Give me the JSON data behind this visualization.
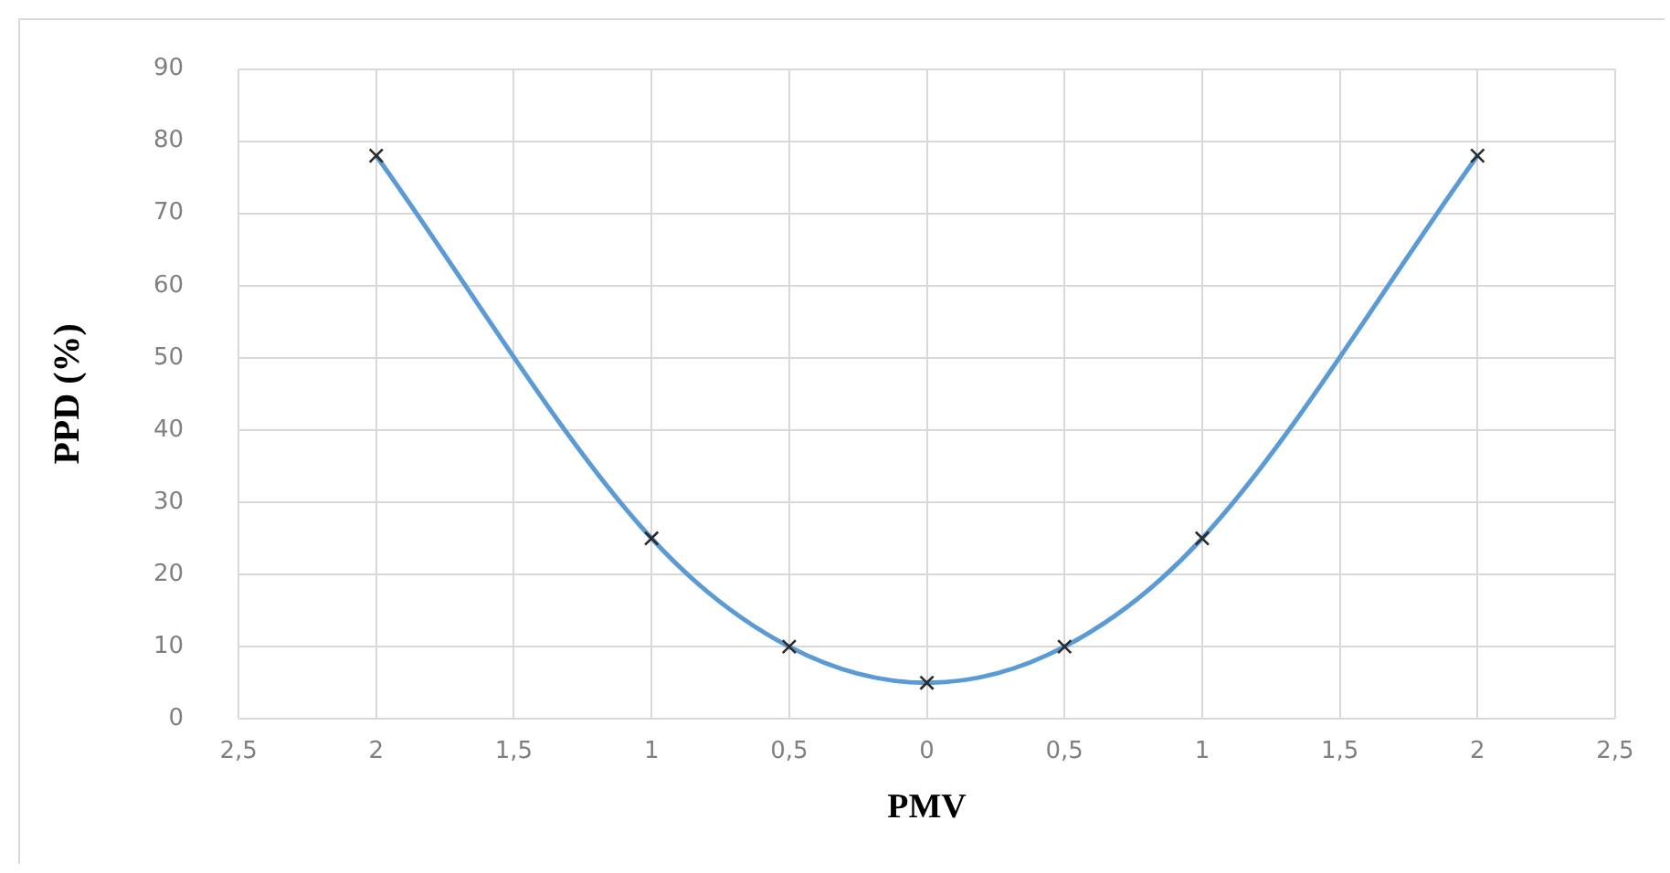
{
  "chart_data": {
    "type": "line",
    "xlabel": "PMV",
    "ylabel": "PPD (%)",
    "x": [
      -2,
      -1,
      -0.5,
      0,
      0.5,
      1,
      2
    ],
    "series": [
      {
        "color": "#5b9bd5",
        "values": [
          78,
          25,
          10,
          5,
          10,
          25,
          78
        ]
      }
    ],
    "xlim": [
      -2.5,
      2.5
    ],
    "xticks": [
      {
        "value": -2.5,
        "label": "2,5"
      },
      {
        "value": -2,
        "label": "2"
      },
      {
        "value": -1.5,
        "label": "1,5"
      },
      {
        "value": -1,
        "label": "1"
      },
      {
        "value": -0.5,
        "label": "0,5"
      },
      0,
      {
        "value": 0.5,
        "label": "0,5"
      },
      1,
      {
        "value": 1.5,
        "label": "1,5"
      },
      2,
      {
        "value": 2.5,
        "label": "2,5"
      }
    ],
    "ylim": [
      0,
      90
    ],
    "yticks": [
      0,
      10,
      20,
      30,
      40,
      50,
      60,
      70,
      80,
      90
    ],
    "grid": true,
    "legend": false,
    "marker": "cross",
    "line_style": "solid"
  }
}
